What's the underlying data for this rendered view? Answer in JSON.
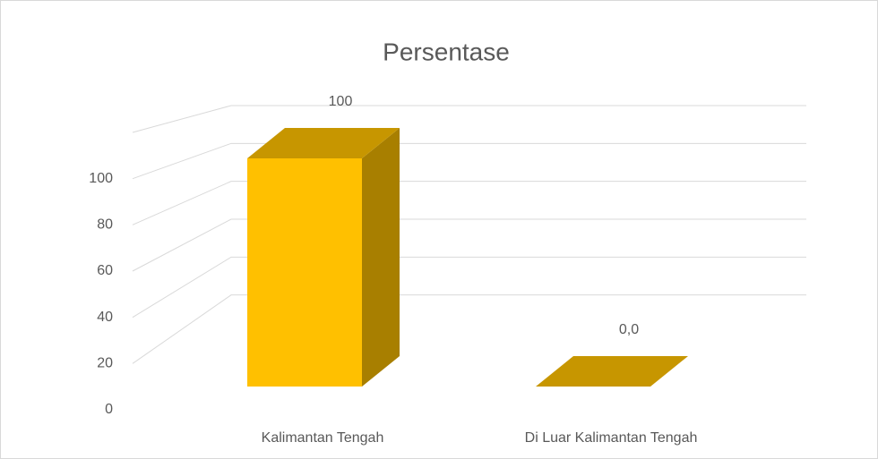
{
  "chart_data": {
    "type": "bar3d",
    "title": "Persentase",
    "categories": [
      "Kalimantan Tengah",
      "Di Luar Kalimantan Tengah"
    ],
    "values": [
      100,
      0
    ],
    "value_labels": [
      "100",
      "0,0"
    ],
    "color": "#ffc000",
    "ylim": [
      0,
      120
    ],
    "yticks": [
      0,
      20,
      40,
      60,
      80,
      100
    ],
    "grid": true
  }
}
